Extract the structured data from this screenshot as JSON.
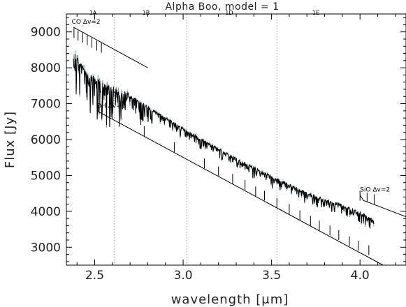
{
  "chart_data": {
    "type": "line",
    "title": "Alpha Boo, model = 1",
    "xlabel": "wavelength [μm]",
    "ylabel": "Flux [Jy]",
    "xlim": [
      2.34,
      4.26
    ],
    "ylim": [
      2500,
      9500
    ],
    "xticks": [
      2.5,
      3.0,
      3.5,
      4.0
    ],
    "xtick_labels": [
      "2.5",
      "3.0",
      "3.5",
      "4.0"
    ],
    "yticks": [
      3000,
      4000,
      5000,
      6000,
      7000,
      8000,
      9000
    ],
    "ytick_labels": [
      "3000",
      "4000",
      "5000",
      "6000",
      "7000",
      "8000",
      "9000"
    ],
    "band_dividers": [
      2.61,
      3.02,
      3.53
    ],
    "band_labels": [
      {
        "text": "1A",
        "x": 2.49,
        "y": 9480
      },
      {
        "text": "1B",
        "x": 2.79,
        "y": 9480
      },
      {
        "text": "1D",
        "x": 3.26,
        "y": 9480
      },
      {
        "text": "1E",
        "x": 3.75,
        "y": 9480
      }
    ],
    "series": [
      {
        "color": "#000000",
        "style": "observed"
      },
      {
        "color": "#7fa3ad",
        "style": "model"
      }
    ],
    "continuum_anchors": {
      "x": [
        2.38,
        2.45,
        2.55,
        2.7,
        2.9,
        3.1,
        3.3,
        3.5,
        3.7,
        3.9,
        4.0,
        4.08
      ],
      "y": [
        8600,
        8000,
        7700,
        7400,
        6800,
        6200,
        5650,
        5150,
        4700,
        4350,
        4150,
        3950
      ]
    },
    "line_lists": [
      {
        "label": "CO Δv=2",
        "label_at": [
          2.37,
          9230
        ],
        "guide": [
          [
            2.38,
            9130
          ],
          [
            2.8,
            8000
          ]
        ],
        "ticks": [
          [
            2.383,
            8830
          ],
          [
            2.406,
            8760
          ],
          [
            2.432,
            8700
          ],
          [
            2.458,
            8630
          ],
          [
            2.484,
            8560
          ],
          [
            2.512,
            8480
          ],
          [
            2.538,
            8420
          ]
        ]
      },
      {
        "label": "OH Δv=1",
        "label_at": [
          2.51,
          6880
        ],
        "guide": [
          [
            2.52,
            6980
          ],
          [
            2.52,
            6780
          ],
          [
            4.13,
            2500
          ]
        ],
        "ticks": [
          [
            2.6,
            6580
          ],
          [
            2.78,
            6100
          ],
          [
            2.95,
            5650
          ],
          [
            3.12,
            5200
          ],
          [
            3.2,
            4980
          ],
          [
            3.28,
            4770
          ],
          [
            3.35,
            4600
          ],
          [
            3.41,
            4420
          ],
          [
            3.46,
            4300
          ],
          [
            3.53,
            4100
          ],
          [
            3.6,
            3930
          ],
          [
            3.66,
            3750
          ],
          [
            3.72,
            3600
          ],
          [
            3.77,
            3470
          ],
          [
            3.83,
            3330
          ],
          [
            3.88,
            3200
          ],
          [
            3.94,
            3030
          ],
          [
            3.99,
            2910
          ],
          [
            4.05,
            2780
          ]
        ]
      },
      {
        "label": "SiO Δv=2",
        "label_at": [
          4.0,
          4550
        ],
        "guide": [
          [
            4.0,
            4450
          ],
          [
            4.02,
            4300
          ],
          [
            4.26,
            3850
          ]
        ],
        "ticks": [
          [
            4.0,
            4300
          ],
          [
            4.04,
            4250
          ],
          [
            4.08,
            4200
          ]
        ]
      }
    ],
    "observed_samples": [
      [
        2.38,
        7200
      ],
      [
        2.39,
        8400
      ],
      [
        2.4,
        7700
      ],
      [
        2.42,
        8100
      ],
      [
        2.44,
        7400
      ],
      [
        2.46,
        7900
      ],
      [
        2.48,
        7350
      ],
      [
        2.5,
        7800
      ],
      [
        2.52,
        7300
      ],
      [
        2.55,
        7650
      ],
      [
        2.6,
        7500
      ],
      [
        2.65,
        7350
      ],
      [
        2.7,
        7350
      ],
      [
        2.75,
        7150
      ],
      [
        2.8,
        7000
      ],
      [
        2.85,
        6850
      ],
      [
        2.9,
        6720
      ],
      [
        2.95,
        6560
      ],
      [
        3.0,
        6420
      ],
      [
        3.05,
        6260
      ],
      [
        3.1,
        6130
      ],
      [
        3.15,
        6000
      ],
      [
        3.2,
        5850
      ],
      [
        3.25,
        5720
      ],
      [
        3.3,
        5580
      ],
      [
        3.35,
        5450
      ],
      [
        3.4,
        5300
      ],
      [
        3.45,
        5180
      ],
      [
        3.5,
        5060
      ],
      [
        3.55,
        4950
      ],
      [
        3.6,
        4830
      ],
      [
        3.65,
        4720
      ],
      [
        3.7,
        4610
      ],
      [
        3.75,
        4510
      ],
      [
        3.8,
        4420
      ],
      [
        3.85,
        4330
      ],
      [
        3.9,
        4250
      ],
      [
        3.95,
        4160
      ],
      [
        4.0,
        4080
      ],
      [
        4.03,
        3980
      ],
      [
        4.06,
        3870
      ],
      [
        4.08,
        3870
      ]
    ]
  }
}
